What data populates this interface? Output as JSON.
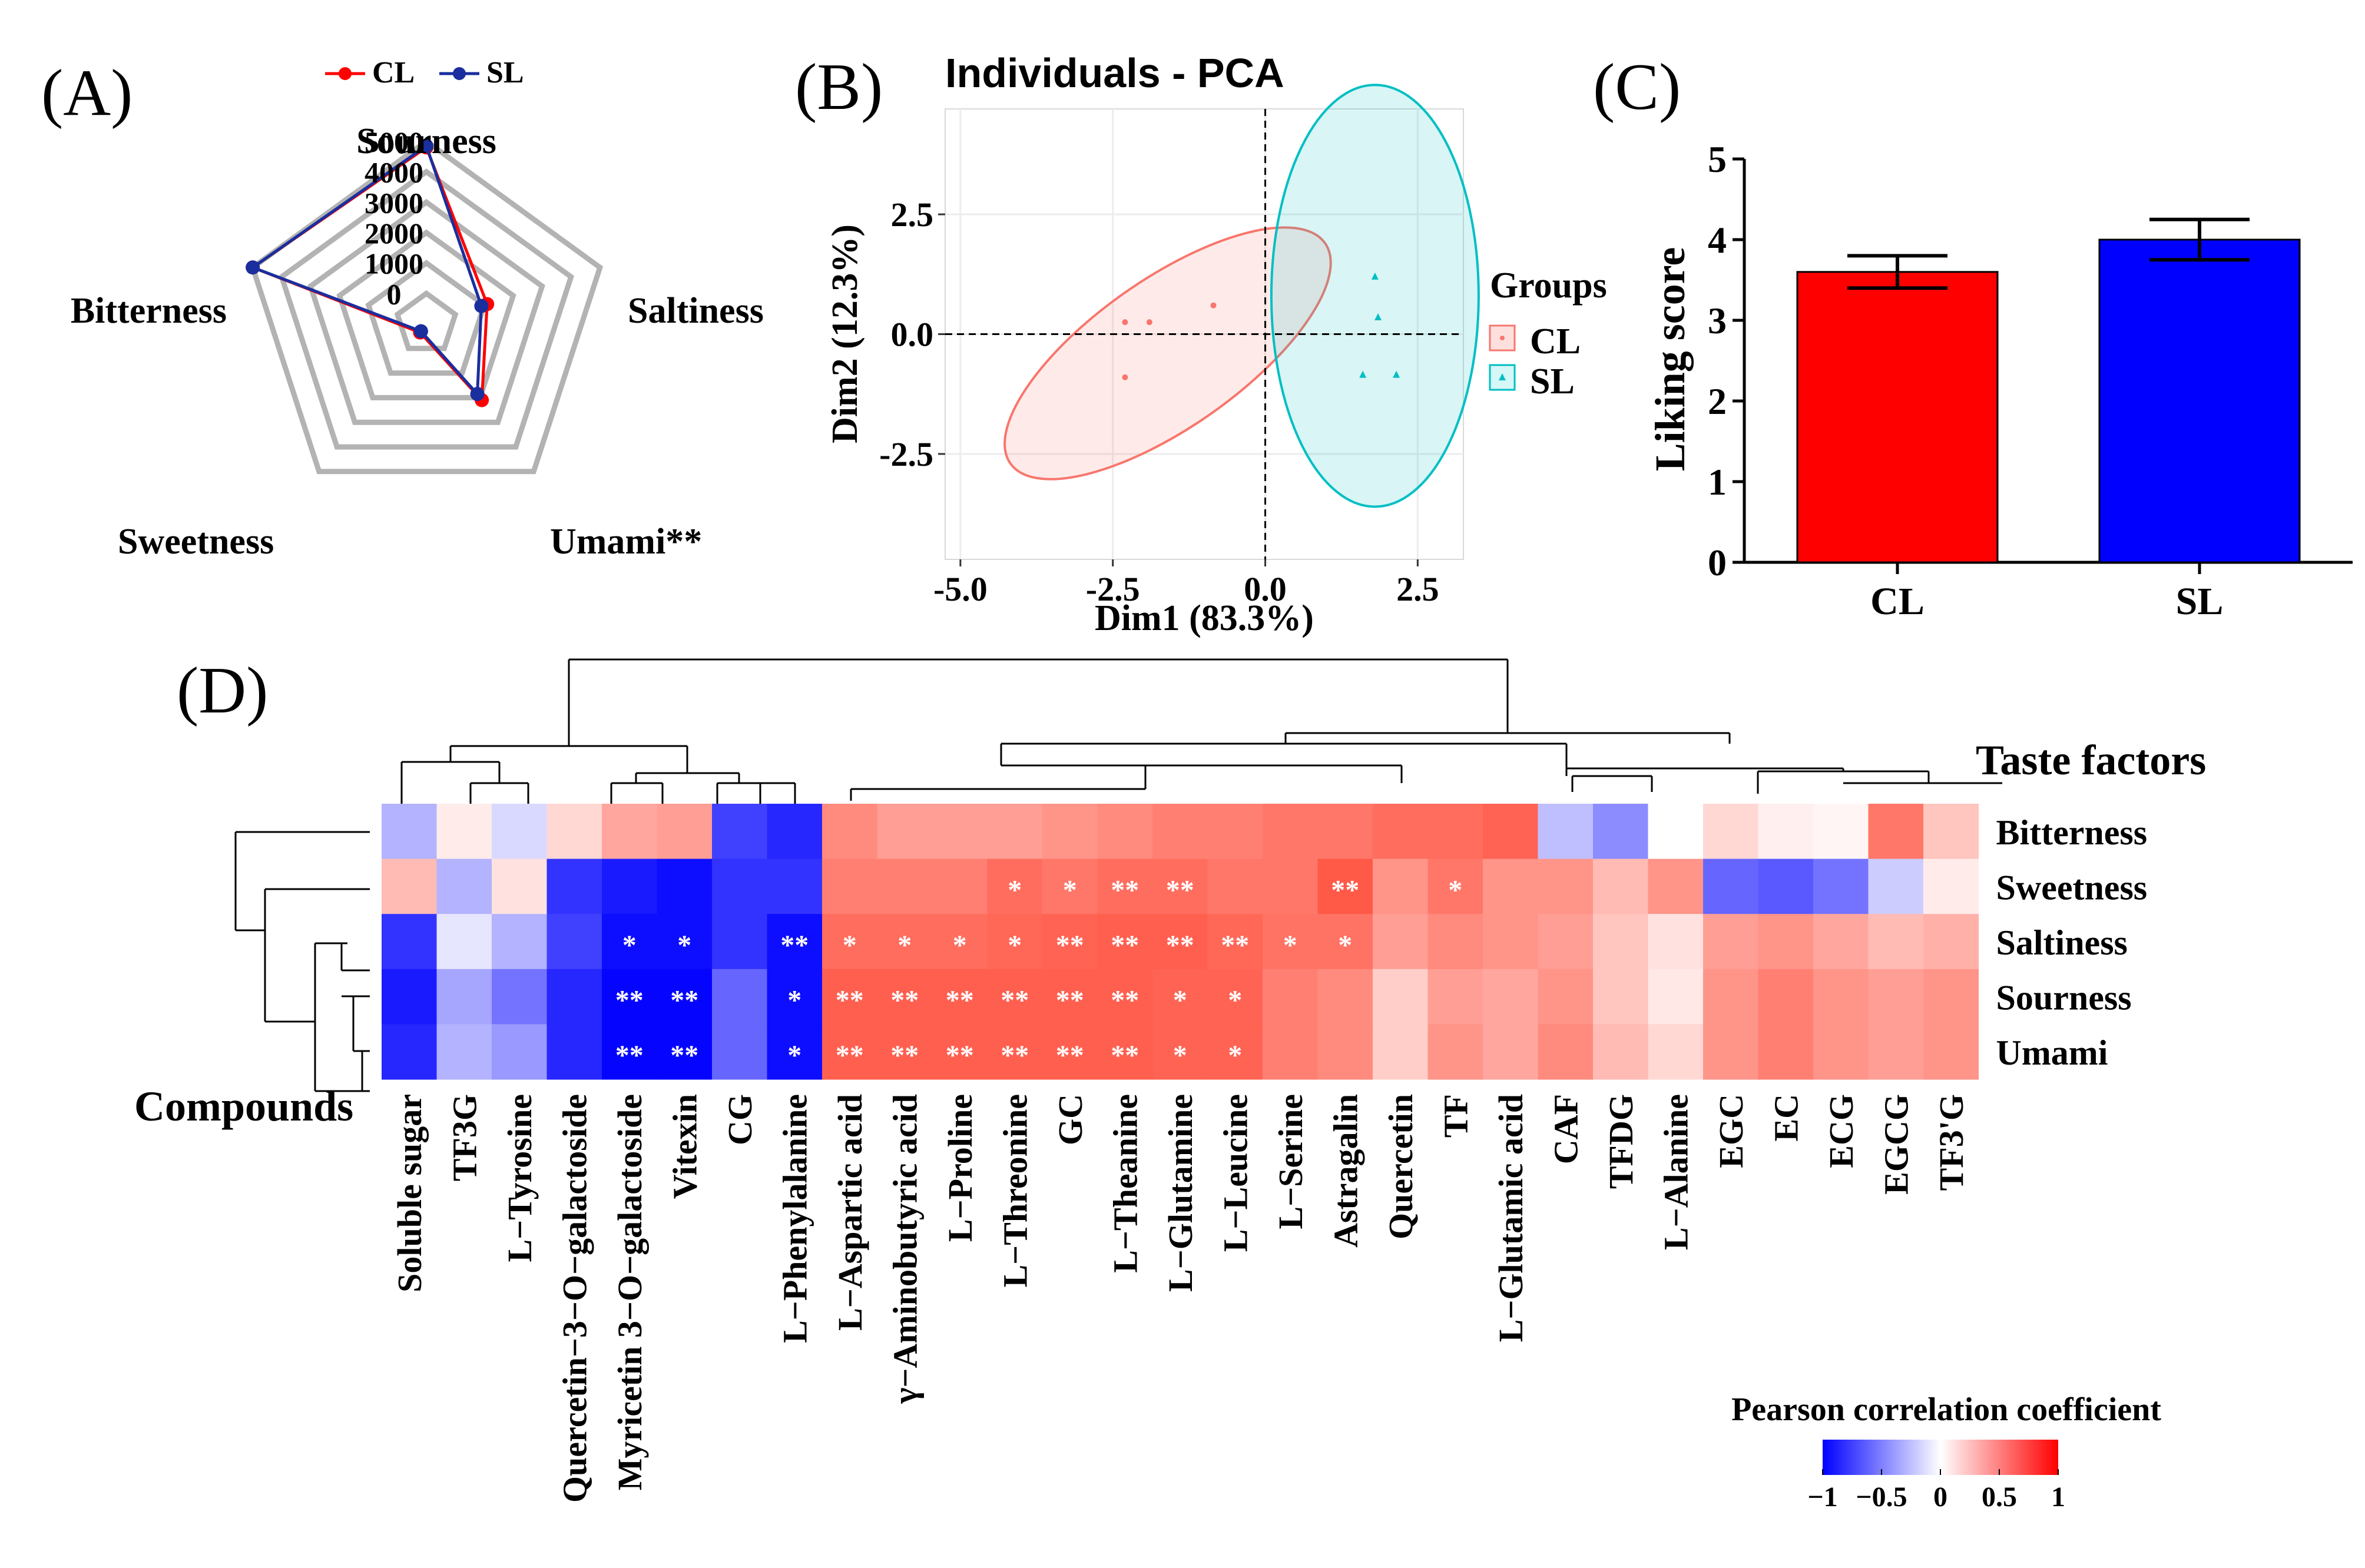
{
  "panels": {
    "a": "(A)",
    "b": "(B)",
    "c": "(C)",
    "d": "(D)"
  },
  "colors": {
    "cl": "#ff0000",
    "sl": "#1a2e9e",
    "cl_pca": "#f8766d",
    "sl_pca": "#00bfc4",
    "bar_cl": "#ff0000",
    "bar_sl": "#0000ff",
    "grid": "#b3b3b3"
  },
  "chart_data": [
    {
      "type": "radar",
      "panel": "A",
      "legend": [
        "CL",
        "SL"
      ],
      "axes": [
        "Sourness",
        "Saltiness",
        "Umami**",
        "Sweetness",
        "Bitterness"
      ],
      "radial_ticks": [
        "0",
        "1000",
        "2000",
        "3000",
        "4000",
        "5000"
      ],
      "rmin": -1000,
      "rmax": 5000,
      "series": [
        {
          "name": "CL",
          "values": [
            4800,
            1100,
            2100,
            -650,
            5000
          ]
        },
        {
          "name": "SL",
          "values": [
            4850,
            900,
            1850,
            -700,
            5000
          ]
        }
      ]
    },
    {
      "type": "scatter",
      "panel": "B",
      "title": "Individuals - PCA",
      "xlabel": "Dim1 (83.3%)",
      "ylabel": "Dim2 (12.3%)",
      "xlim": [
        -5.25,
        3.25
      ],
      "ylim": [
        -4.7,
        4.7
      ],
      "xticks": [
        -5.0,
        -2.5,
        0.0,
        2.5
      ],
      "xtick_labels": [
        "-5.0",
        "-2.5",
        "0.0",
        "2.5"
      ],
      "yticks": [
        -2.5,
        0.0,
        2.5
      ],
      "ytick_labels": [
        "-2.5",
        "0.0",
        "2.5"
      ],
      "legend_title": "Groups",
      "groups": [
        {
          "name": "CL",
          "points": [
            [
              -2.3,
              0.25
            ],
            [
              -1.9,
              0.25
            ],
            [
              -0.85,
              0.6
            ],
            [
              -2.3,
              -0.9
            ]
          ],
          "ellipse": {
            "cx": -1.6,
            "cy": -0.4,
            "rx": 3.15,
            "ry": 1.55,
            "angle_deg": 35
          }
        },
        {
          "name": "SL",
          "points": [
            [
              1.8,
              1.2
            ],
            [
              1.85,
              0.35
            ],
            [
              1.6,
              -0.85
            ],
            [
              2.15,
              -0.85
            ]
          ],
          "ellipse": {
            "cx": 1.8,
            "cy": 0.8,
            "rx": 1.7,
            "ry": 4.4,
            "angle_deg": 0
          }
        }
      ]
    },
    {
      "type": "bar",
      "panel": "C",
      "categories": [
        "CL",
        "SL"
      ],
      "values": [
        3.6,
        4.0
      ],
      "errors": [
        0.2,
        0.25
      ],
      "ylabel": "Liking score",
      "ylim": [
        0,
        5
      ],
      "yticks": [
        "0",
        "1",
        "2",
        "3",
        "4",
        "5"
      ]
    },
    {
      "type": "heatmap",
      "panel": "D",
      "row_axis_title": "Taste factors",
      "col_axis_title": "Compounds",
      "rows": [
        "Bitterness",
        "Sweetness",
        "Saltiness",
        "Sourness",
        "Umami"
      ],
      "columns": [
        "Soluble sugar",
        "TF3G",
        "L−Tyrosine",
        "Quercetin−3−O−galactoside",
        "Myricetin 3−O−galactoside",
        "Vitexin",
        "CG",
        "L−Phenylalanine",
        "L−Aspartic acid",
        "γ−Aminobutyric acid",
        "L−Proline",
        "L−Threonine",
        "GC",
        "L−Theanine",
        "L−Glutamine",
        "L−Leucine",
        "L−Serine",
        "Astragalin",
        "Quercetin",
        "TF",
        "L−Glutamic acid",
        "CAF",
        "TFDG",
        "L−Alanine",
        "EGC",
        "EC",
        "ECG",
        "EGCG",
        "TF3'G"
      ],
      "values": [
        [
          -0.3,
          0.1,
          -0.15,
          0.2,
          0.45,
          0.5,
          -0.75,
          -0.85,
          0.6,
          0.5,
          0.5,
          0.5,
          0.55,
          0.6,
          0.65,
          0.65,
          0.7,
          0.7,
          0.75,
          0.75,
          0.8,
          -0.25,
          -0.45,
          0.0,
          0.2,
          0.08,
          0.05,
          0.7,
          0.3
        ],
        [
          0.35,
          -0.3,
          0.15,
          -0.8,
          -0.9,
          -0.95,
          -0.8,
          -0.8,
          0.65,
          0.65,
          0.65,
          0.75,
          0.7,
          0.75,
          0.75,
          0.7,
          0.7,
          0.85,
          0.55,
          0.7,
          0.55,
          0.55,
          0.35,
          0.55,
          -0.6,
          -0.65,
          -0.55,
          -0.2,
          0.1
        ],
        [
          -0.8,
          -0.1,
          -0.3,
          -0.75,
          -0.95,
          -0.95,
          -0.8,
          -0.95,
          0.75,
          0.75,
          0.75,
          0.78,
          0.8,
          0.82,
          0.82,
          0.78,
          0.72,
          0.72,
          0.5,
          0.6,
          0.55,
          0.5,
          0.3,
          0.15,
          0.5,
          0.55,
          0.45,
          0.35,
          0.4
        ],
        [
          -0.9,
          -0.35,
          -0.55,
          -0.85,
          -0.98,
          -0.98,
          -0.6,
          -0.95,
          0.82,
          0.82,
          0.82,
          0.82,
          0.82,
          0.82,
          0.8,
          0.8,
          0.65,
          0.6,
          0.25,
          0.5,
          0.45,
          0.55,
          0.3,
          0.12,
          0.55,
          0.65,
          0.55,
          0.5,
          0.55
        ],
        [
          -0.85,
          -0.3,
          -0.4,
          -0.85,
          -0.98,
          -0.98,
          -0.6,
          -0.95,
          0.82,
          0.82,
          0.82,
          0.82,
          0.82,
          0.82,
          0.8,
          0.8,
          0.65,
          0.6,
          0.25,
          0.55,
          0.45,
          0.6,
          0.35,
          0.2,
          0.55,
          0.65,
          0.55,
          0.5,
          0.55
        ]
      ],
      "significance": [
        [
          "",
          "",
          "",
          "",
          "",
          "",
          "",
          "",
          "",
          "",
          "",
          "",
          "",
          "",
          "",
          "",
          "",
          "",
          "",
          "",
          "",
          "",
          "",
          "",
          "",
          "",
          "",
          "",
          ""
        ],
        [
          "",
          "",
          "",
          "",
          "",
          "",
          "",
          "",
          "",
          "",
          "",
          "*",
          "*",
          "**",
          "**",
          "",
          "",
          "**",
          "",
          "*",
          "",
          "",
          "",
          "",
          "",
          "",
          "",
          "",
          ""
        ],
        [
          "",
          "",
          "",
          "",
          "*",
          "*",
          "",
          "**",
          "*",
          "*",
          "*",
          "*",
          "**",
          "**",
          "**",
          "**",
          "*",
          "*",
          "",
          "",
          "",
          "",
          "",
          "",
          "",
          "",
          "",
          "",
          ""
        ],
        [
          "",
          "",
          "",
          "",
          "**",
          "**",
          "",
          "*",
          "**",
          "**",
          "**",
          "**",
          "**",
          "**",
          "*",
          "*",
          "",
          "",
          "",
          "",
          "",
          "",
          "",
          "",
          "",
          "",
          "",
          "",
          ""
        ],
        [
          "",
          "",
          "",
          "",
          "**",
          "**",
          "",
          "*",
          "**",
          "**",
          "**",
          "**",
          "**",
          "**",
          "*",
          "*",
          "",
          "",
          "",
          "",
          "",
          "",
          "",
          "",
          "",
          "",
          "",
          "",
          ""
        ]
      ],
      "colorbar": {
        "title": "Pearson correlation coefficient",
        "ticks": [
          "−1",
          "−0.5",
          "0",
          "0.5",
          "1"
        ],
        "range": [
          -1,
          1
        ],
        "colors": [
          "#0000ff",
          "#ffffff",
          "#ff0000"
        ]
      }
    }
  ]
}
